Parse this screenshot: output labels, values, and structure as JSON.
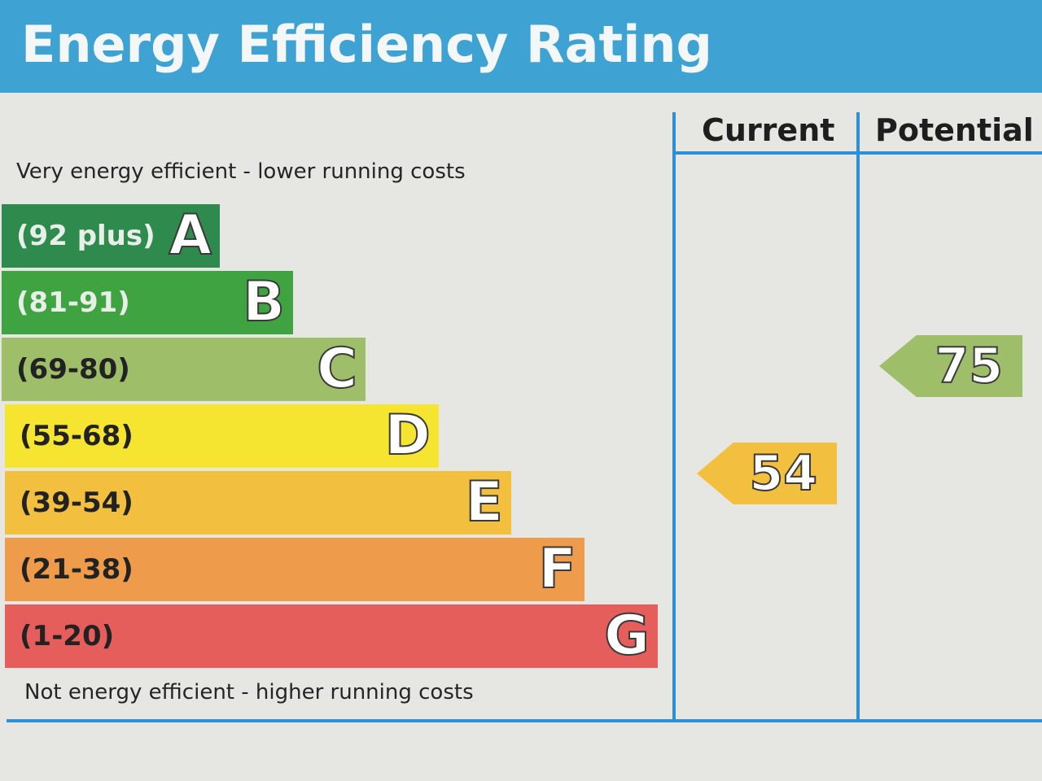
{
  "header": {
    "title": "Energy Efficiency Rating"
  },
  "columns": {
    "current": "Current",
    "potential": "Potential"
  },
  "captions": {
    "top": "Very energy efficient - lower running costs",
    "bottom": "Not energy efficient - higher running costs"
  },
  "bands": [
    {
      "letter": "A",
      "range": "(92 plus)",
      "color": "#2f8a4d",
      "text_color": "#e8efe8"
    },
    {
      "letter": "B",
      "range": "(81-91)",
      "color": "#3ea340",
      "text_color": "#e8efe8"
    },
    {
      "letter": "C",
      "range": "(69-80)",
      "color": "#9fbe6a",
      "text_color": "#222222"
    },
    {
      "letter": "D",
      "range": "(55-68)",
      "color": "#f5e430",
      "text_color": "#222222"
    },
    {
      "letter": "E",
      "range": "(39-54)",
      "color": "#f2c03e",
      "text_color": "#222222"
    },
    {
      "letter": "F",
      "range": "(21-38)",
      "color": "#ee9c4b",
      "text_color": "#222222"
    },
    {
      "letter": "G",
      "range": "(1-20)",
      "color": "#e65e5c",
      "text_color": "#222222"
    }
  ],
  "ratings": {
    "current": {
      "value": "54",
      "band": "E",
      "color": "#f2c03e"
    },
    "potential": {
      "value": "75",
      "band": "C",
      "color": "#9fbe6a"
    }
  }
}
